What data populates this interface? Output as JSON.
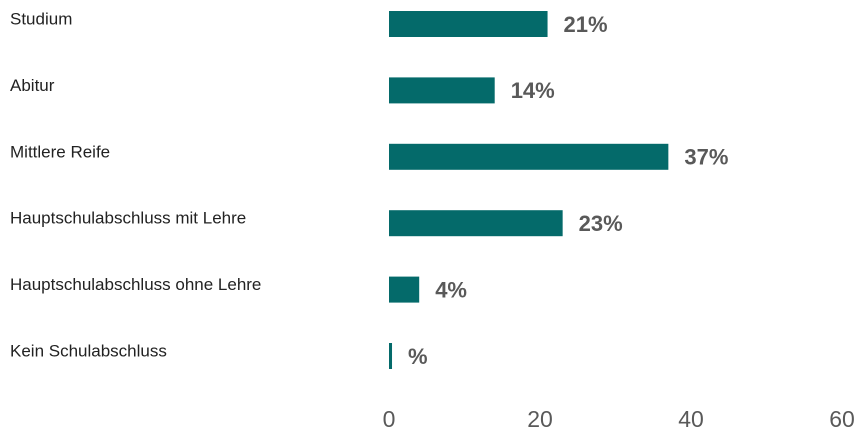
{
  "chart_data": {
    "type": "bar",
    "orientation": "horizontal",
    "categories": [
      "Studium",
      "Abitur",
      "Mittlere Reife",
      "Hauptschulabschluss mit Lehre",
      "Hauptschulabschluss ohne Lehre",
      "Kein Schulabschluss"
    ],
    "values": [
      21,
      14,
      37,
      23,
      4,
      0.4
    ],
    "value_labels": [
      "21%",
      "14%",
      "37%",
      "23%",
      "4%",
      "%"
    ],
    "color": "#046a6a",
    "xlim": [
      0,
      60
    ],
    "xticks": [
      0,
      20,
      40,
      60
    ],
    "grid": false
  }
}
